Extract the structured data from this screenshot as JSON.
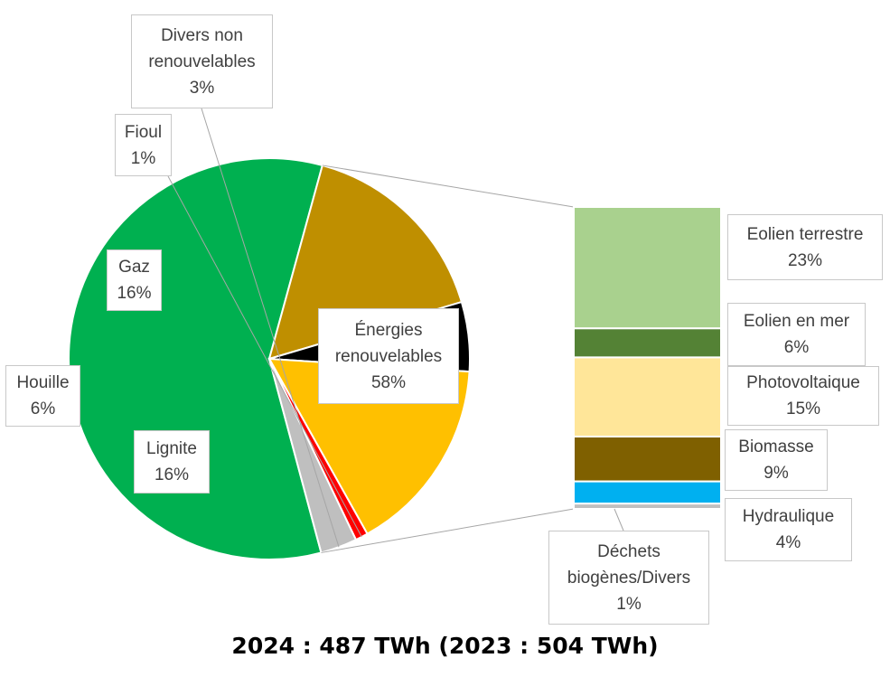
{
  "caption": "2024 : 487 TWh (2023 : 504 TWh)",
  "chart_data": {
    "type": "pie",
    "subtype": "bar-of-pie",
    "caption": "2024 : 487 TWh (2023 : 504 TWh)",
    "pie": {
      "slices": [
        {
          "key": "renouvelables",
          "lines": [
            "Énergies",
            "renouvelables"
          ],
          "label_value": "58%",
          "value": 57.5,
          "color": "#00b050"
        },
        {
          "key": "lignite",
          "lines": [
            "Lignite"
          ],
          "label_value": "16%",
          "value": 15.9,
          "color": "#bf8f00"
        },
        {
          "key": "houille",
          "lines": [
            "Houille"
          ],
          "label_value": "6%",
          "value": 5.5,
          "color": "#000000"
        },
        {
          "key": "gaz",
          "lines": [
            "Gaz"
          ],
          "label_value": "16%",
          "value": 15.6,
          "color": "#ffc000"
        },
        {
          "key": "fioul",
          "lines": [
            "Fioul"
          ],
          "label_value": "1%",
          "value": 1.0,
          "color": "#ff0000"
        },
        {
          "key": "divers-non-renouvelables",
          "lines": [
            "Divers non",
            "renouvelables"
          ],
          "label_value": "3%",
          "value": 2.9,
          "color": "#bfbfbf"
        }
      ]
    },
    "bar": {
      "segments": [
        {
          "key": "eolien-terrestre",
          "lines": [
            "Eolien terrestre"
          ],
          "label_value": "23%",
          "value": 23,
          "color": "#a9d18e"
        },
        {
          "key": "eolien-en-mer",
          "lines": [
            "Eolien en mer"
          ],
          "label_value": "6%",
          "value": 5.5,
          "color": "#548235"
        },
        {
          "key": "photovoltaique",
          "lines": [
            "Photovoltaique"
          ],
          "label_value": "15%",
          "value": 15,
          "color": "#ffe699"
        },
        {
          "key": "biomasse",
          "lines": [
            "Biomasse"
          ],
          "label_value": "9%",
          "value": 8.5,
          "color": "#7f6000"
        },
        {
          "key": "hydraulique",
          "lines": [
            "Hydraulique"
          ],
          "label_value": "4%",
          "value": 4.2,
          "color": "#00b0f0"
        },
        {
          "key": "dechets-biogenes-divers",
          "lines": [
            "Déchets",
            "biogènes/Divers"
          ],
          "label_value": "1%",
          "value": 1.0,
          "color": "#bfbfbf"
        }
      ]
    }
  }
}
